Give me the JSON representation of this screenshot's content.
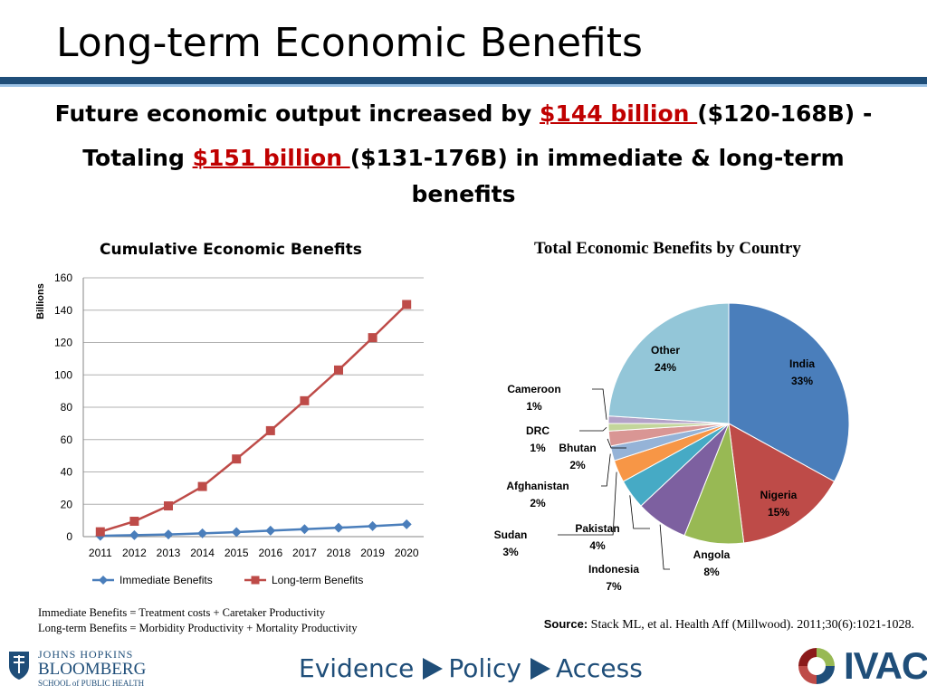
{
  "slide": {
    "title": "Long-term Economic Benefits",
    "headline1_pre": "Future economic output increased by ",
    "headline1_highlight": "$144 billion ",
    "headline1_post": "($120-168B) -",
    "headline2_pre": "Totaling ",
    "headline2_highlight": "$151 billion ",
    "headline2_post": "($131-176B) in immediate & long-term",
    "headline3": "benefits",
    "highlight_color": "#c00000"
  },
  "footnotes": {
    "line1": "Immediate Benefits = Treatment costs + Caretaker Productivity",
    "line2": "Long-term Benefits = Morbidity Productivity + Mortality Productivity"
  },
  "source": {
    "label": "Source:",
    "text": " Stack ML, et al. Health Aff (Millwood). 2011;30(6):1021-1028."
  },
  "footer": {
    "jhu_line1": "JOHNS HOPKINS",
    "jhu_line2": "BLOOMBERG",
    "jhu_line3": "SCHOOL of PUBLIC HEALTH",
    "tagline": [
      "Evidence",
      "Policy",
      "Access"
    ],
    "ivac": "IVAC",
    "brand_color": "#1f4e79"
  },
  "chart_data": [
    {
      "type": "line",
      "title": "Cumulative Economic Benefits",
      "ylabel": "Billions",
      "xlabel": "",
      "x": [
        "2011",
        "2012",
        "2013",
        "2014",
        "2015",
        "2016",
        "2017",
        "2018",
        "2019",
        "2020"
      ],
      "ylim": [
        0,
        160
      ],
      "yticks": [
        0,
        20,
        40,
        60,
        80,
        100,
        120,
        140,
        160
      ],
      "grid": true,
      "legend": "bottom",
      "series": [
        {
          "name": "Immediate Benefits",
          "color": "#4a7ebb",
          "marker": "diamond",
          "values": [
            0.5,
            0.9,
            1.3,
            2.0,
            2.8,
            3.7,
            4.6,
            5.5,
            6.5,
            7.6
          ]
        },
        {
          "name": "Long-term Benefits",
          "color": "#be4b48",
          "marker": "square",
          "values": [
            3,
            9.5,
            19,
            31,
            48,
            65.5,
            84,
            103,
            123,
            143.5
          ]
        }
      ]
    },
    {
      "type": "pie",
      "title": "Total Economic Benefits by Country",
      "slices": [
        {
          "label": "India",
          "pct": "33%",
          "value": 33,
          "color": "#4a7ebb"
        },
        {
          "label": "Nigeria",
          "pct": "15%",
          "value": 15,
          "color": "#be4b48"
        },
        {
          "label": "Angola",
          "pct": "8%",
          "value": 8,
          "color": "#98b954"
        },
        {
          "label": "Indonesia",
          "pct": "7%",
          "value": 7,
          "color": "#7d60a0"
        },
        {
          "label": "Pakistan",
          "pct": "4%",
          "value": 4,
          "color": "#46aac5"
        },
        {
          "label": "Sudan",
          "pct": "3%",
          "value": 3,
          "color": "#f79646"
        },
        {
          "label": "Afghanistan",
          "pct": "2%",
          "value": 2,
          "color": "#95b3d7"
        },
        {
          "label": "Bhutan",
          "pct": "2%",
          "value": 2,
          "color": "#d99694"
        },
        {
          "label": "DRC",
          "pct": "1%",
          "value": 1,
          "color": "#c3d69b"
        },
        {
          "label": "Cameroon",
          "pct": "1%",
          "value": 1,
          "color": "#b3a2c7"
        },
        {
          "label": "Other",
          "pct": "24%",
          "value": 24,
          "color": "#93c6d8"
        }
      ]
    }
  ]
}
